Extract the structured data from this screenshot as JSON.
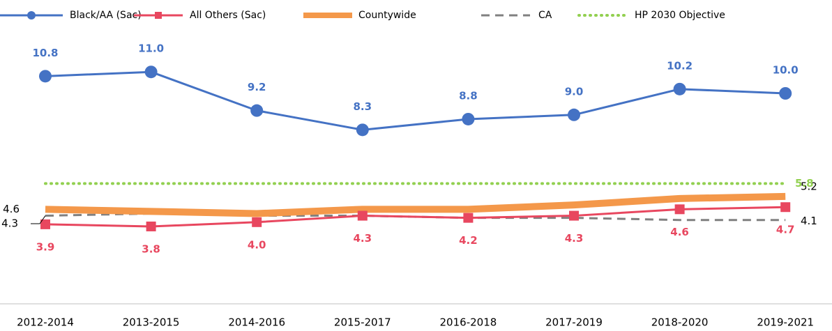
{
  "chart_data": {
    "type": "line",
    "categories": [
      "2012-2014",
      "2013-2015",
      "2014-2016",
      "2015-2017",
      "2016-2018",
      "2017-2019",
      "2018-2020",
      "2019-2021"
    ],
    "ylim": [
      0,
      12.5
    ],
    "legend": "top",
    "series": [
      {
        "name": "Black/AA (Sac)",
        "color": "#4472c4",
        "marker": "circle",
        "style": "solid",
        "values": [
          10.8,
          11.0,
          9.2,
          8.3,
          8.8,
          9.0,
          10.2,
          10.0
        ],
        "value_labels": [
          "10.8",
          "11.0",
          "9.2",
          "8.3",
          "8.8",
          "9.0",
          "10.2",
          "10.0"
        ]
      },
      {
        "name": "All Others (Sac)",
        "color": "#e8475f",
        "marker": "square",
        "style": "solid",
        "values": [
          3.9,
          3.8,
          4.0,
          4.3,
          4.2,
          4.3,
          4.6,
          4.7
        ],
        "value_labels": [
          "3.9",
          "3.8",
          "4.0",
          "4.3",
          "4.2",
          "4.3",
          "4.6",
          "4.7"
        ]
      },
      {
        "name": "Countywide",
        "color": "#f4984a",
        "style": "thick",
        "values": [
          4.6,
          4.5,
          4.4,
          4.6,
          4.6,
          4.8,
          5.1,
          5.2
        ],
        "value_labels": [
          "4.6",
          null,
          null,
          null,
          null,
          null,
          null,
          "5.2"
        ]
      },
      {
        "name": "CA",
        "color": "#808080",
        "style": "dashed",
        "values": [
          4.3,
          4.4,
          4.3,
          4.3,
          4.2,
          4.2,
          4.1,
          4.1
        ],
        "value_labels": [
          "4.3",
          null,
          null,
          null,
          null,
          null,
          null,
          "4.1"
        ]
      },
      {
        "name": "HP 2030 Objective",
        "color": "#92d050",
        "style": "dotted",
        "values": [
          5.8,
          5.8,
          5.8,
          5.8,
          5.8,
          5.8,
          5.8,
          5.8
        ],
        "value_labels": [
          null,
          null,
          null,
          null,
          null,
          null,
          null,
          "5.8"
        ]
      }
    ]
  }
}
